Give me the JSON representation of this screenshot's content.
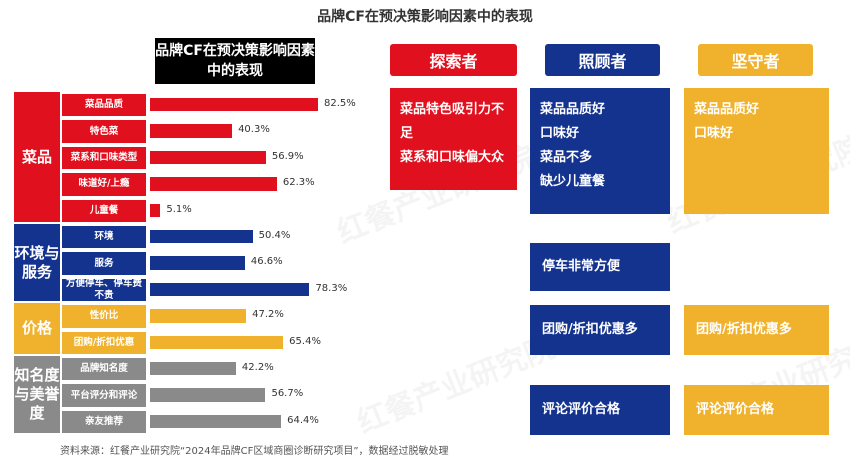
{
  "title": "品牌CF在预决策影响因素中的表现",
  "chart_header": "品牌CF在预决策影响因素中的表现",
  "source": "资料来源：红餐产业研究院“2024年品牌CF区域商圈诊断研究项目”，数据经过脱敏处理",
  "watermark": "红餐产业研究院",
  "colors": {
    "red": "#e0101e",
    "navy": "#14338f",
    "gold": "#f0b22d",
    "gray": "#8a8a8a"
  },
  "chart_data": {
    "type": "bar",
    "title": "品牌CF在预决策影响因素中的表现",
    "xlim": [
      0,
      82.5
    ],
    "groups": [
      {
        "label": "菜品",
        "color": "red",
        "items": [
          {
            "label": "菜品品质",
            "value": 82.5,
            "text": "82.5%"
          },
          {
            "label": "特色菜",
            "value": 40.3,
            "text": "40.3%"
          },
          {
            "label": "菜系和口味类型",
            "value": 56.9,
            "text": "56.9%"
          },
          {
            "label": "味道好/上瘾",
            "value": 62.3,
            "text": "62.3%"
          },
          {
            "label": "儿童餐",
            "value": 5.1,
            "text": "5.1%"
          }
        ]
      },
      {
        "label": "环境与服务",
        "color": "navy",
        "items": [
          {
            "label": "环境",
            "value": 50.4,
            "text": "50.4%"
          },
          {
            "label": "服务",
            "value": 46.6,
            "text": "46.6%"
          },
          {
            "label": "方便停车、停车费不贵",
            "value": 78.3,
            "text": "78.3%"
          }
        ]
      },
      {
        "label": "价格",
        "color": "gold",
        "items": [
          {
            "label": "性价比",
            "value": 47.2,
            "text": "47.2%"
          },
          {
            "label": "团购/折扣优惠",
            "value": 65.4,
            "text": "65.4%"
          }
        ]
      },
      {
        "label": "知名度与美誉度",
        "color": "gray",
        "items": [
          {
            "label": "品牌知名度",
            "value": 42.2,
            "text": "42.2%"
          },
          {
            "label": "平台评分和评论",
            "value": 56.7,
            "text": "56.7%"
          },
          {
            "label": "亲友推荐",
            "value": 64.4,
            "text": "64.4%"
          }
        ]
      }
    ]
  },
  "personas": [
    {
      "name": "探索者",
      "color": "red",
      "boxes": [
        [
          "菜品特色吸引力不足",
          "菜系和口味偏大众"
        ]
      ]
    },
    {
      "name": "照顾者",
      "color": "navy",
      "boxes": [
        [
          "菜品品质好",
          "口味好",
          "菜品不多",
          "缺少儿童餐"
        ],
        [
          "停车非常方便"
        ],
        [
          "团购/折扣优惠多"
        ],
        [
          "评论评价合格"
        ]
      ]
    },
    {
      "name": "坚守者",
      "color": "gold",
      "boxes": [
        [
          "菜品品质好",
          "口味好"
        ],
        [
          "团购/折扣优惠多"
        ],
        [
          "评论评价合格"
        ]
      ]
    }
  ]
}
